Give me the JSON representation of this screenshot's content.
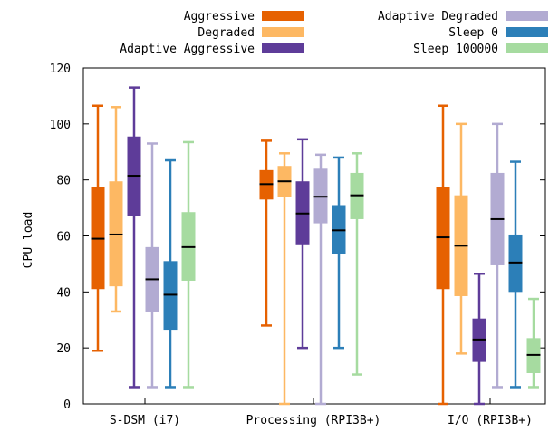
{
  "chart_data": {
    "type": "boxplot",
    "ylabel": "CPU load",
    "xlabel": "",
    "ylim": [
      0,
      120
    ],
    "yticks": [
      0,
      20,
      40,
      60,
      80,
      100,
      120
    ],
    "grid": false,
    "legend_position": "top",
    "categories": [
      "S-DSM (i7)",
      "Processing (RPI3B+)",
      "I/O (RPI3B+)"
    ],
    "series": [
      {
        "name": "Aggressive",
        "color": "#e66101",
        "boxes": [
          {
            "min": 19,
            "q1": 41,
            "median": 59,
            "q3": 77.5,
            "max": 106.5
          },
          {
            "min": 28,
            "q1": 73,
            "median": 78.5,
            "q3": 83.5,
            "max": 94
          },
          {
            "min": 0,
            "q1": 41,
            "median": 59.5,
            "q3": 77.5,
            "max": 106.5
          }
        ]
      },
      {
        "name": "Degraded",
        "color": "#fdb863",
        "boxes": [
          {
            "min": 33,
            "q1": 42,
            "median": 60.5,
            "q3": 79.5,
            "max": 106
          },
          {
            "min": 0,
            "q1": 74,
            "median": 79.5,
            "q3": 85,
            "max": 89.5
          },
          {
            "min": 18,
            "q1": 38.5,
            "median": 56.5,
            "q3": 74.5,
            "max": 100
          }
        ]
      },
      {
        "name": "Adaptive Aggressive",
        "color": "#5e3c99",
        "boxes": [
          {
            "min": 6,
            "q1": 67,
            "median": 81.5,
            "q3": 95.5,
            "max": 113
          },
          {
            "min": 20,
            "q1": 57,
            "median": 68,
            "q3": 79.5,
            "max": 94.5
          },
          {
            "min": 0,
            "q1": 15,
            "median": 23,
            "q3": 30.5,
            "max": 46.5
          }
        ]
      },
      {
        "name": "Adaptive Degraded",
        "color": "#b2abd2",
        "boxes": [
          {
            "min": 6,
            "q1": 33,
            "median": 44.5,
            "q3": 56,
            "max": 93
          },
          {
            "min": 0,
            "q1": 64.5,
            "median": 74,
            "q3": 84,
            "max": 89
          },
          {
            "min": 6,
            "q1": 49.5,
            "median": 66,
            "q3": 82.5,
            "max": 100
          }
        ]
      },
      {
        "name": "Sleep 0",
        "color": "#2c7fb8",
        "boxes": [
          {
            "min": 6,
            "q1": 26.5,
            "median": 39,
            "q3": 51,
            "max": 87
          },
          {
            "min": 20,
            "q1": 53.5,
            "median": 62,
            "q3": 71,
            "max": 88
          },
          {
            "min": 6,
            "q1": 40,
            "median": 50.5,
            "q3": 60.5,
            "max": 86.5
          }
        ]
      },
      {
        "name": "Sleep 100000",
        "color": "#a6dba0",
        "boxes": [
          {
            "min": 6,
            "q1": 44,
            "median": 56,
            "q3": 68.5,
            "max": 93.5
          },
          {
            "min": 10.5,
            "q1": 66,
            "median": 74.5,
            "q3": 82.5,
            "max": 89.5
          },
          {
            "min": 6,
            "q1": 11,
            "median": 17.5,
            "q3": 23.5,
            "max": 37.5
          }
        ]
      }
    ]
  }
}
